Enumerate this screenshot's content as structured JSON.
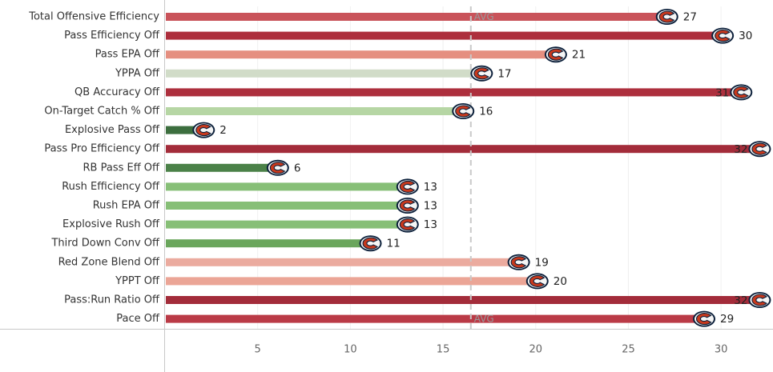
{
  "chart_data": {
    "type": "bar",
    "orientation": "horizontal",
    "categories": [
      "Total Offensive Efficiency",
      "Pass Efficiency Off",
      "Pass EPA Off",
      "YPPA Off",
      "QB Accuracy Off",
      "On-Target Catch % Off",
      "Explosive Pass Off",
      "Pass Pro Efficiency Off",
      "RB Pass Eff Off",
      "Rush Efficiency Off",
      "Rush EPA Off",
      "Explosive Rush Off",
      "Third Down Conv Off",
      "Red Zone Blend Off",
      "YPPT Off",
      "Pass:Run Ratio Off",
      "Pace Off"
    ],
    "values": [
      27,
      30,
      21,
      17,
      31,
      16,
      2,
      32,
      6,
      13,
      13,
      13,
      11,
      19,
      20,
      32,
      29
    ],
    "colors": [
      "#c9535a",
      "#ad2f3d",
      "#e58f80",
      "#d1dcc8",
      "#ad2f3d",
      "#b6d6a4",
      "#3c6e3e",
      "#a32c3a",
      "#4b8148",
      "#87bf77",
      "#87bf77",
      "#87bf77",
      "#6aa65c",
      "#ebab9f",
      "#eba596",
      "#a32c3a",
      "#ba3a46"
    ],
    "xlim": [
      0,
      32.5
    ],
    "xticks": [
      5,
      10,
      15,
      20,
      25,
      30
    ],
    "avg": 16.5,
    "avg_label": "AVG",
    "marker_icon": "bears-c-logo-icon",
    "grid": true
  }
}
